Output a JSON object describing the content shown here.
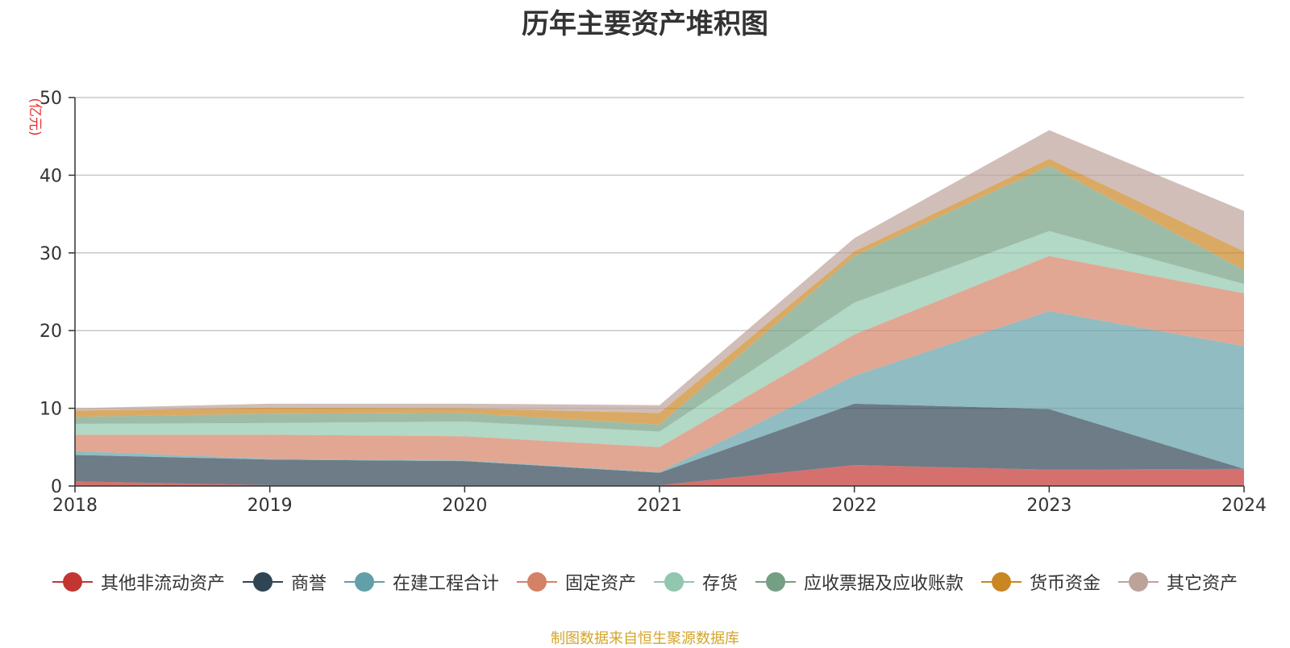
{
  "chart_data": {
    "type": "area",
    "stacked": true,
    "title": "历年主要资产堆积图",
    "ylabel": "(亿元)",
    "xlabel": "",
    "categories": [
      "2018",
      "2019",
      "2020",
      "2021",
      "2022",
      "2023",
      "2024"
    ],
    "ylim": [
      0,
      50
    ],
    "yticks": [
      0,
      10,
      20,
      30,
      40,
      50
    ],
    "grid": true,
    "legend_position": "bottom",
    "series": [
      {
        "name": "其他非流动资产",
        "color": "#c23531",
        "values": [
          0.6,
          0.1,
          0.1,
          0.1,
          2.7,
          2.1,
          2.2
        ]
      },
      {
        "name": "商誉",
        "color": "#2f4554",
        "values": [
          3.4,
          3.3,
          3.1,
          1.6,
          7.9,
          7.8,
          0.0
        ]
      },
      {
        "name": "在建工程合计",
        "color": "#61a0a8",
        "values": [
          0.5,
          0.1,
          0.1,
          0.1,
          3.6,
          12.6,
          15.8
        ]
      },
      {
        "name": "固定资产",
        "color": "#d48265",
        "values": [
          2.1,
          3.1,
          3.1,
          3.2,
          5.3,
          7.1,
          6.8
        ]
      },
      {
        "name": "存货",
        "color": "#91c7ae",
        "values": [
          1.4,
          1.5,
          1.9,
          2.0,
          4.1,
          3.2,
          1.2
        ]
      },
      {
        "name": "应收票据及应收账款",
        "color": "#749f83",
        "values": [
          0.9,
          1.2,
          1.1,
          0.9,
          6.0,
          8.4,
          1.8
        ]
      },
      {
        "name": "货币资金",
        "color": "#ca8622",
        "values": [
          0.8,
          0.8,
          0.6,
          1.5,
          0.6,
          0.9,
          2.4
        ]
      },
      {
        "name": "其它资产",
        "color": "#bda29a",
        "values": [
          0.3,
          0.5,
          0.6,
          1.0,
          1.7,
          3.7,
          5.2
        ]
      }
    ]
  },
  "footer": {
    "source": "制图数据来自恒生聚源数据库"
  }
}
